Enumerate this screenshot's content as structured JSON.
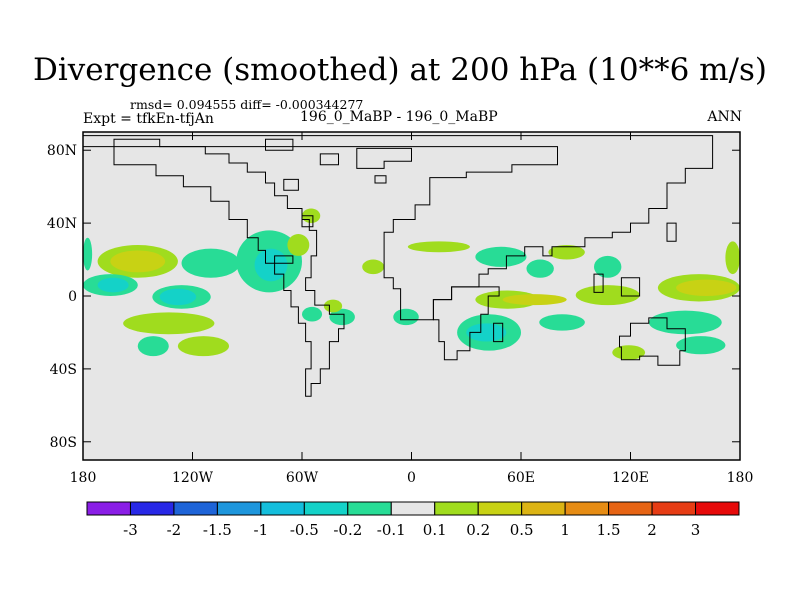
{
  "header": {
    "title": "Divergence (smoothed) at 200 hPa (10**6 m/s)",
    "stats": "rmsd= 0.094555 diff= -0.000344277",
    "expt": "Expt = tfkEn-tfjAn",
    "cases": "196_0_MaBP - 196_0_MaBP",
    "season": "ANN"
  },
  "chart_data": {
    "type": "heatmap",
    "title": "Divergence (smoothed) at 200 hPa (10**6 m/s)",
    "projection": "cylindrical-equidistant",
    "xlim": [
      -180,
      180
    ],
    "ylim": [
      -90,
      90
    ],
    "x_ticks": [
      {
        "value": -180,
        "label": "180"
      },
      {
        "value": -120,
        "label": "120W"
      },
      {
        "value": -60,
        "label": "60W"
      },
      {
        "value": 0,
        "label": "0"
      },
      {
        "value": 60,
        "label": "60E"
      },
      {
        "value": 120,
        "label": "120E"
      },
      {
        "value": 180,
        "label": "180"
      }
    ],
    "y_ticks": [
      {
        "value": 80,
        "label": "80N"
      },
      {
        "value": 40,
        "label": "40N"
      },
      {
        "value": 0,
        "label": "0"
      },
      {
        "value": -40,
        "label": "40S"
      },
      {
        "value": -80,
        "label": "80S"
      }
    ],
    "background_color": "#e6e6e6",
    "colorbar": {
      "labels": [
        "-3",
        "-2",
        "-1.5",
        "-1",
        "-0.5",
        "-0.2",
        "-0.1",
        "0.1",
        "0.2",
        "0.5",
        "1",
        "1.5",
        "2",
        "3"
      ],
      "colors": [
        "#8a1ee6",
        "#2828e6",
        "#1e64d8",
        "#1e96dc",
        "#14bedc",
        "#14d2c8",
        "#28dc96",
        "#e6e6e6",
        "#a0dc1e",
        "#c8d214",
        "#dcb414",
        "#e68c14",
        "#e66414",
        "#e63c14",
        "#e60a0a"
      ]
    },
    "regions": [
      {
        "level": "0.1",
        "lon": [
          -172,
          -128
        ],
        "lat": [
          10,
          28
        ]
      },
      {
        "level": "0.2",
        "lon": [
          -165,
          -135
        ],
        "lat": [
          13,
          25
        ]
      },
      {
        "level": "-0.1",
        "lon": [
          -180,
          -150
        ],
        "lat": [
          0,
          12
        ]
      },
      {
        "level": "-0.2",
        "lon": [
          -172,
          -155
        ],
        "lat": [
          2,
          10
        ]
      },
      {
        "level": "-0.1",
        "lon": [
          -142,
          -110
        ],
        "lat": [
          -7,
          6
        ]
      },
      {
        "level": "-0.2",
        "lon": [
          -138,
          -118
        ],
        "lat": [
          -5,
          4
        ]
      },
      {
        "level": "0.1",
        "lon": [
          -158,
          -108
        ],
        "lat": [
          -21,
          -9
        ]
      },
      {
        "level": "0.1",
        "lon": [
          -128,
          -100
        ],
        "lat": [
          -33,
          -22
        ]
      },
      {
        "level": "-0.1",
        "lon": [
          -150,
          -133
        ],
        "lat": [
          -33,
          -22
        ]
      },
      {
        "level": "-0.1",
        "lon": [
          -96,
          -60
        ],
        "lat": [
          2,
          36
        ]
      },
      {
        "level": "-0.2",
        "lon": [
          -86,
          -68
        ],
        "lat": [
          8,
          26
        ]
      },
      {
        "level": "-0.1",
        "lon": [
          -126,
          -94
        ],
        "lat": [
          10,
          26
        ]
      },
      {
        "level": "0.1",
        "lon": [
          -68,
          -56
        ],
        "lat": [
          22,
          34
        ]
      },
      {
        "level": "0.1",
        "lon": [
          -60,
          -50
        ],
        "lat": [
          40,
          48
        ]
      },
      {
        "level": "-0.1",
        "lon": [
          -60,
          -49
        ],
        "lat": [
          -14,
          -6
        ]
      },
      {
        "level": "-0.1",
        "lon": [
          -45,
          -31
        ],
        "lat": [
          -16,
          -7
        ]
      },
      {
        "level": "0.1",
        "lon": [
          -27,
          -15
        ],
        "lat": [
          12,
          20
        ]
      },
      {
        "level": "0.1",
        "lon": [
          -48,
          -38
        ],
        "lat": [
          -9,
          -2
        ]
      },
      {
        "level": "-0.1",
        "lon": [
          -10,
          4
        ],
        "lat": [
          -16,
          -7
        ]
      },
      {
        "level": "0.1",
        "lon": [
          35,
          70
        ],
        "lat": [
          -7,
          3
        ]
      },
      {
        "level": "0.2",
        "lon": [
          50,
          85
        ],
        "lat": [
          -5,
          1
        ]
      },
      {
        "level": "0.1",
        "lon": [
          90,
          125
        ],
        "lat": [
          -5,
          6
        ]
      },
      {
        "level": "0.1",
        "lon": [
          135,
          180
        ],
        "lat": [
          -3,
          12
        ]
      },
      {
        "level": "0.2",
        "lon": [
          145,
          178
        ],
        "lat": [
          0,
          9
        ]
      },
      {
        "level": "-0.1",
        "lon": [
          25,
          60
        ],
        "lat": [
          -30,
          -10
        ]
      },
      {
        "level": "-0.2",
        "lon": [
          30,
          52
        ],
        "lat": [
          -25,
          -15
        ]
      },
      {
        "level": "-0.1",
        "lon": [
          70,
          95
        ],
        "lat": [
          -19,
          -10
        ]
      },
      {
        "level": "-0.1",
        "lon": [
          130,
          170
        ],
        "lat": [
          -21,
          -8
        ]
      },
      {
        "level": "0.1",
        "lon": [
          110,
          128
        ],
        "lat": [
          -35,
          -27
        ]
      },
      {
        "level": "-0.1",
        "lon": [
          145,
          172
        ],
        "lat": [
          -32,
          -22
        ]
      },
      {
        "level": "0.1",
        "lon": [
          -2,
          32
        ],
        "lat": [
          24,
          30
        ]
      },
      {
        "level": "-0.1",
        "lon": [
          35,
          63
        ],
        "lat": [
          16,
          27
        ]
      },
      {
        "level": "-0.1",
        "lon": [
          63,
          78
        ],
        "lat": [
          10,
          20
        ]
      },
      {
        "level": "0.1",
        "lon": [
          75,
          95
        ],
        "lat": [
          20,
          28
        ]
      },
      {
        "level": "-0.1",
        "lon": [
          100,
          115
        ],
        "lat": [
          10,
          22
        ]
      },
      {
        "level": "0.1",
        "lon": [
          172,
          180
        ],
        "lat": [
          12,
          30
        ]
      },
      {
        "level": "-0.1",
        "lon": [
          -180,
          -175
        ],
        "lat": [
          14,
          32
        ]
      }
    ],
    "landmasks": [
      [
        [
          -163,
          86
        ],
        [
          -138,
          86
        ],
        [
          -138,
          82
        ],
        [
          -113,
          82
        ],
        [
          -113,
          78
        ],
        [
          -100,
          78
        ],
        [
          -100,
          73
        ],
        [
          -90,
          73
        ],
        [
          -90,
          68
        ],
        [
          -80,
          68
        ],
        [
          -80,
          62
        ],
        [
          -75,
          62
        ],
        [
          -75,
          55
        ],
        [
          -68,
          55
        ],
        [
          -68,
          48
        ],
        [
          -60,
          48
        ],
        [
          -60,
          42
        ],
        [
          -56,
          42
        ],
        [
          -56,
          36
        ],
        [
          -52,
          36
        ],
        [
          -52,
          22
        ],
        [
          -55,
          22
        ],
        [
          -55,
          10
        ],
        [
          -58,
          10
        ],
        [
          -58,
          3
        ],
        [
          -53,
          3
        ],
        [
          -53,
          -5
        ],
        [
          -45,
          -5
        ],
        [
          -45,
          -10
        ],
        [
          -37,
          -10
        ],
        [
          -37,
          -18
        ],
        [
          -40,
          -18
        ],
        [
          -40,
          -25
        ],
        [
          -45,
          -25
        ],
        [
          -45,
          -40
        ],
        [
          -50,
          -40
        ],
        [
          -50,
          -48
        ],
        [
          -55,
          -48
        ],
        [
          -55,
          -55
        ],
        [
          -58,
          -55
        ],
        [
          -58,
          -40
        ],
        [
          -55,
          -40
        ],
        [
          -55,
          -25
        ],
        [
          -58,
          -25
        ],
        [
          -58,
          -15
        ],
        [
          -62,
          -15
        ],
        [
          -62,
          -6
        ],
        [
          -66,
          -6
        ],
        [
          -66,
          3
        ],
        [
          -70,
          3
        ],
        [
          -70,
          12
        ],
        [
          -75,
          12
        ],
        [
          -75,
          18
        ],
        [
          -80,
          18
        ],
        [
          -80,
          25
        ],
        [
          -84,
          25
        ],
        [
          -84,
          32
        ],
        [
          -90,
          32
        ],
        [
          -90,
          42
        ],
        [
          -100,
          42
        ],
        [
          -100,
          52
        ],
        [
          -110,
          52
        ],
        [
          -110,
          60
        ],
        [
          -125,
          60
        ],
        [
          -125,
          66
        ],
        [
          -140,
          66
        ],
        [
          -140,
          72
        ],
        [
          -163,
          72
        ],
        [
          -163,
          86
        ]
      ],
      [
        [
          -30,
          70
        ],
        [
          -15,
          70
        ],
        [
          -15,
          74
        ],
        [
          0,
          74
        ],
        [
          0,
          81
        ],
        [
          -30,
          81
        ],
        [
          -30,
          70
        ]
      ],
      [
        [
          -6,
          -13
        ],
        [
          12,
          -13
        ],
        [
          12,
          -2
        ],
        [
          22,
          -2
        ],
        [
          22,
          5
        ],
        [
          37,
          5
        ],
        [
          37,
          12
        ],
        [
          42,
          12
        ],
        [
          42,
          15
        ],
        [
          52,
          15
        ],
        [
          52,
          22
        ],
        [
          62,
          22
        ],
        [
          62,
          27
        ],
        [
          72,
          27
        ],
        [
          72,
          22
        ],
        [
          77,
          22
        ],
        [
          77,
          27
        ],
        [
          95,
          27
        ],
        [
          95,
          32
        ],
        [
          110,
          32
        ],
        [
          110,
          35
        ],
        [
          120,
          35
        ],
        [
          120,
          40
        ],
        [
          130,
          40
        ],
        [
          130,
          48
        ],
        [
          140,
          48
        ],
        [
          140,
          62
        ],
        [
          150,
          62
        ],
        [
          150,
          70
        ],
        [
          165,
          70
        ],
        [
          165,
          88
        ],
        [
          -180,
          88
        ],
        [
          -180,
          82
        ],
        [
          80,
          82
        ],
        [
          80,
          72
        ],
        [
          55,
          72
        ],
        [
          55,
          68
        ],
        [
          30,
          68
        ],
        [
          30,
          65
        ],
        [
          10,
          65
        ],
        [
          10,
          50
        ],
        [
          2,
          50
        ],
        [
          2,
          42
        ],
        [
          -10,
          42
        ],
        [
          -10,
          35
        ],
        [
          -15,
          35
        ],
        [
          -15,
          20
        ],
        [
          -15,
          10
        ],
        [
          -10,
          10
        ],
        [
          -10,
          4
        ],
        [
          -6,
          4
        ],
        [
          -6,
          -13
        ]
      ],
      [
        [
          12,
          -2
        ],
        [
          12,
          -13
        ],
        [
          15,
          -13
        ],
        [
          15,
          -25
        ],
        [
          18,
          -25
        ],
        [
          18,
          -35
        ],
        [
          25,
          -35
        ],
        [
          25,
          -30
        ],
        [
          32,
          -30
        ],
        [
          32,
          -20
        ],
        [
          38,
          -20
        ],
        [
          38,
          -10
        ],
        [
          42,
          -10
        ],
        [
          42,
          0
        ],
        [
          48,
          0
        ],
        [
          48,
          5
        ],
        [
          37,
          5
        ],
        [
          22,
          5
        ],
        [
          22,
          -2
        ],
        [
          12,
          -2
        ]
      ],
      [
        [
          114,
          -22
        ],
        [
          120,
          -22
        ],
        [
          120,
          -15
        ],
        [
          130,
          -15
        ],
        [
          130,
          -12
        ],
        [
          140,
          -12
        ],
        [
          140,
          -18
        ],
        [
          150,
          -18
        ],
        [
          150,
          -30
        ],
        [
          147,
          -30
        ],
        [
          147,
          -38
        ],
        [
          135,
          -38
        ],
        [
          135,
          -33
        ],
        [
          125,
          -33
        ],
        [
          125,
          -35
        ],
        [
          115,
          -35
        ],
        [
          115,
          -28
        ],
        [
          114,
          -28
        ],
        [
          114,
          -22
        ]
      ],
      [
        [
          -50,
          78
        ],
        [
          -40,
          78
        ],
        [
          -40,
          72
        ],
        [
          -50,
          72
        ],
        [
          -50,
          78
        ]
      ],
      [
        [
          -70,
          64
        ],
        [
          -62,
          64
        ],
        [
          -62,
          58
        ],
        [
          -70,
          58
        ],
        [
          -70,
          64
        ]
      ],
      [
        [
          -60,
          44
        ],
        [
          -54,
          44
        ],
        [
          -54,
          38
        ],
        [
          -60,
          38
        ],
        [
          -60,
          44
        ]
      ],
      [
        [
          -75,
          22
        ],
        [
          -65,
          22
        ],
        [
          -65,
          18
        ],
        [
          -75,
          18
        ],
        [
          -75,
          22
        ]
      ],
      [
        [
          -20,
          66
        ],
        [
          -14,
          66
        ],
        [
          -14,
          62
        ],
        [
          -20,
          62
        ],
        [
          -20,
          66
        ]
      ],
      [
        [
          140,
          40
        ],
        [
          145,
          40
        ],
        [
          145,
          30
        ],
        [
          140,
          30
        ],
        [
          140,
          40
        ]
      ],
      [
        [
          115,
          10
        ],
        [
          125,
          10
        ],
        [
          125,
          0
        ],
        [
          115,
          0
        ],
        [
          115,
          10
        ]
      ],
      [
        [
          45,
          -15
        ],
        [
          50,
          -15
        ],
        [
          50,
          -25
        ],
        [
          45,
          -25
        ],
        [
          45,
          -15
        ]
      ],
      [
        [
          -80,
          80
        ],
        [
          -65,
          80
        ],
        [
          -65,
          86
        ],
        [
          -80,
          86
        ],
        [
          -80,
          80
        ]
      ],
      [
        [
          100,
          12
        ],
        [
          105,
          12
        ],
        [
          105,
          2
        ],
        [
          100,
          2
        ],
        [
          100,
          12
        ]
      ]
    ]
  }
}
